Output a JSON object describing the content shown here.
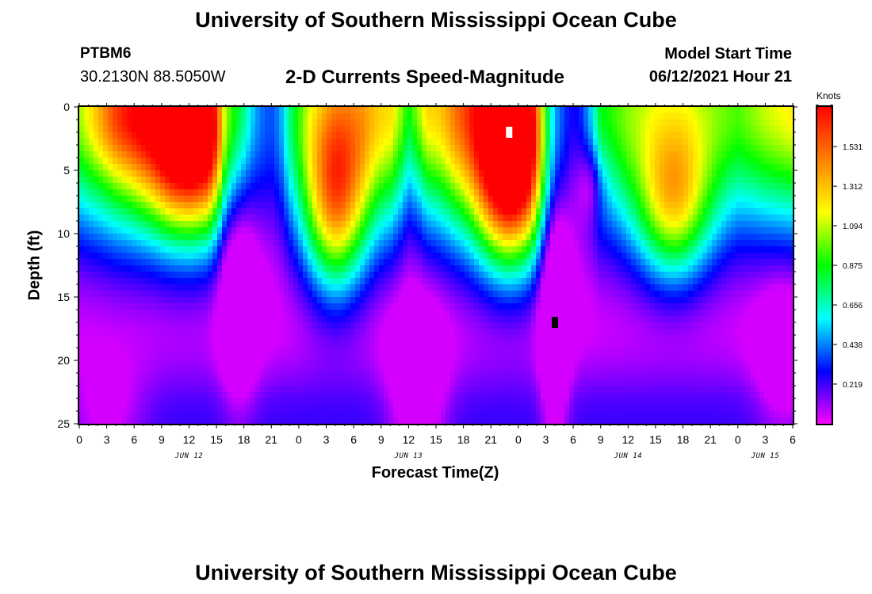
{
  "header": {
    "title": "University of Southern Mississippi Ocean Cube",
    "station": "PTBM6",
    "coords": "30.2130N  88.5050W",
    "chart_title": "2-D Currents Speed-Magnitude",
    "model_label": "Model Start Time",
    "model_time": "06/12/2021 Hour 21"
  },
  "footer": {
    "title": "University of Southern Mississippi Ocean Cube"
  },
  "chart_data": {
    "type": "heatmap",
    "title": "2-D Currents Speed-Magnitude",
    "xlabel": "Forecast Time(Z)",
    "ylabel": "Depth (ft)",
    "x_range_hours": [
      0,
      78
    ],
    "y_range_ft": [
      0,
      25
    ],
    "y_ticks": [
      0,
      5,
      10,
      15,
      20,
      25
    ],
    "x_tick_labels": [
      "0",
      "3",
      "6",
      "9",
      "12",
      "15",
      "18",
      "21",
      "0",
      "3",
      "6",
      "9",
      "12",
      "15",
      "18",
      "21",
      "0",
      "3",
      "6",
      "9",
      "12",
      "15",
      "18",
      "21",
      "0",
      "3",
      "6"
    ],
    "day_labels": [
      {
        "label": "JUN 12",
        "hour": 12
      },
      {
        "label": "JUN 13",
        "hour": 36
      },
      {
        "label": "JUN 14",
        "hour": 60
      },
      {
        "label": "JUN 15",
        "hour": 75
      }
    ],
    "colorbar": {
      "unit": "Knots",
      "min": 0.0,
      "max": 1.75,
      "tick_values": [
        1.531,
        1.312,
        1.094,
        0.875,
        0.656,
        0.438,
        0.219
      ],
      "tick_labels": [
        "1.531",
        "1.312",
        "1.094",
        "0.875",
        "0.656",
        "0.438",
        "0.219"
      ]
    },
    "markers": [
      {
        "kind": "max",
        "color": "#ffffff",
        "hour": 47,
        "depth": 2
      },
      {
        "kind": "min",
        "color": "#000000",
        "hour": 52,
        "depth": 17
      }
    ],
    "field_description": "speed peaks near surface at ~hour 12, ~hour 25, ~hour 47, ~hour 64; minima at depth near hours 17, 37, 52, 77"
  }
}
